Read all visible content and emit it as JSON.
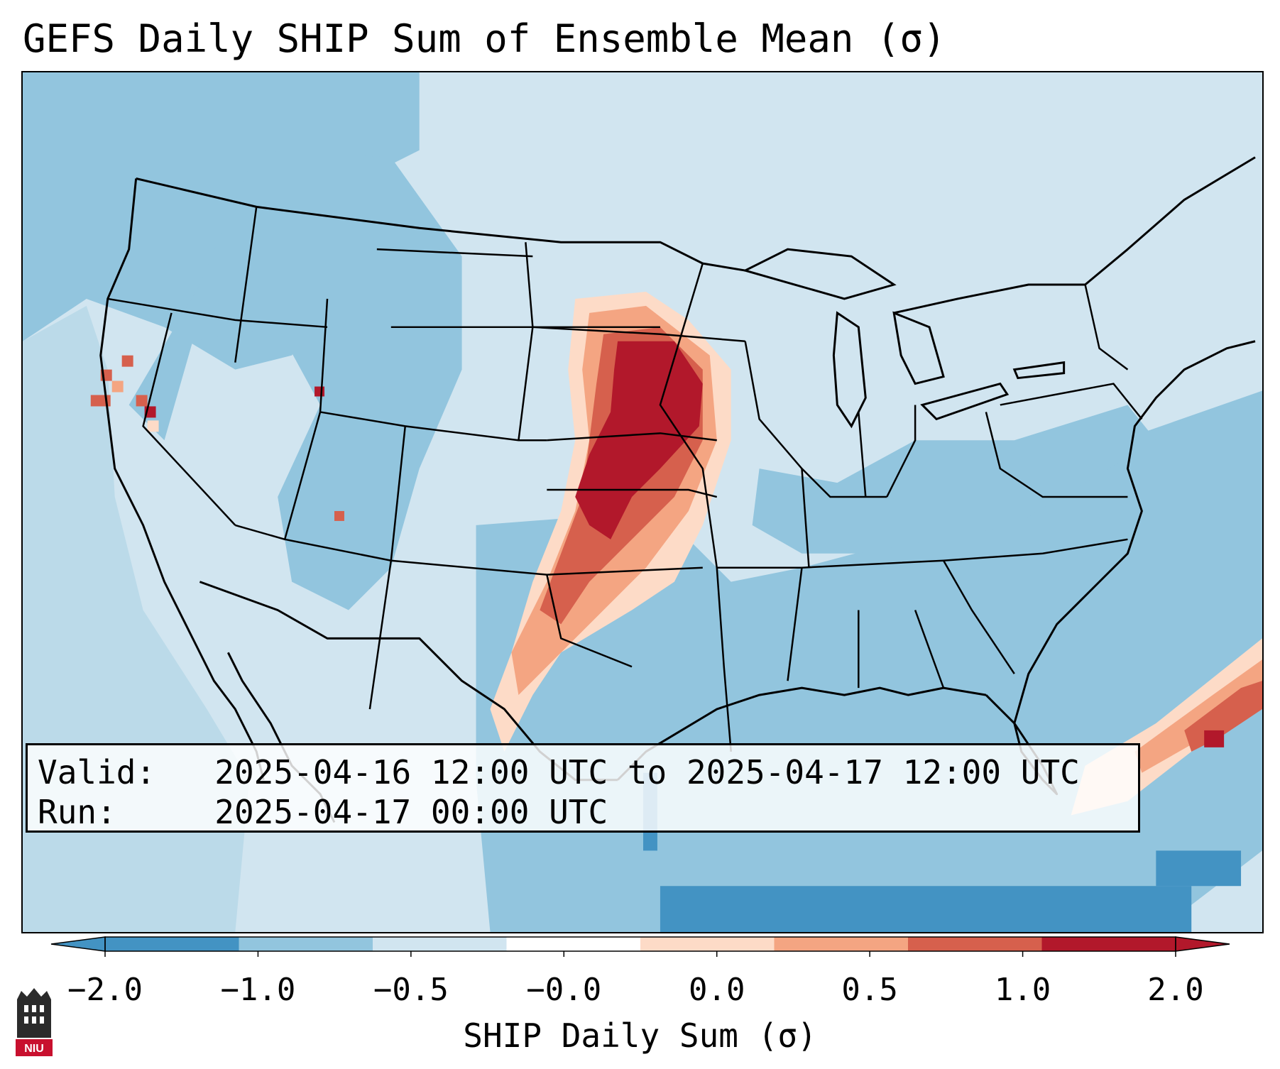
{
  "title": "GEFS Daily SHIP Sum of Ensemble Mean (σ)",
  "info": {
    "valid_label": "Valid:",
    "valid_value": "2025-04-16 12:00 UTC to 2025-04-17 12:00 UTC",
    "run_label": "Run:",
    "run_value": "2025-04-17 00:00 UTC"
  },
  "colorbar": {
    "label": "SHIP Daily Sum (σ)",
    "ticks": [
      "−2.0",
      "−1.0",
      "−0.5",
      "−0.0",
      "0.0",
      "0.5",
      "1.0",
      "2.0"
    ],
    "colors": [
      "#4393c3",
      "#92c5de",
      "#d1e5f0",
      "#ffffff",
      "#fddbc7",
      "#f4a582",
      "#d6604d",
      "#b2182b"
    ],
    "extend": "both"
  },
  "map": {
    "projection": "Lambert conformal, CONUS",
    "background_color": "#d1e5f0",
    "features": [
      "state-borders",
      "country-borders",
      "coastlines",
      "great-lakes"
    ],
    "notable_anomalies": [
      {
        "region": "Nebraska / Iowa / Kansas / Oklahoma corridor",
        "level": "2.0"
      },
      {
        "region": "Texas Panhandle / west Texas",
        "level": "0.5–1.0"
      },
      {
        "region": "Atlantic off the Southeast coast",
        "level": "1.0–2.0"
      }
    ]
  },
  "logo": {
    "text": "NIU",
    "colors": {
      "shield": "#2b2b2b",
      "band": "#c8102e"
    }
  }
}
